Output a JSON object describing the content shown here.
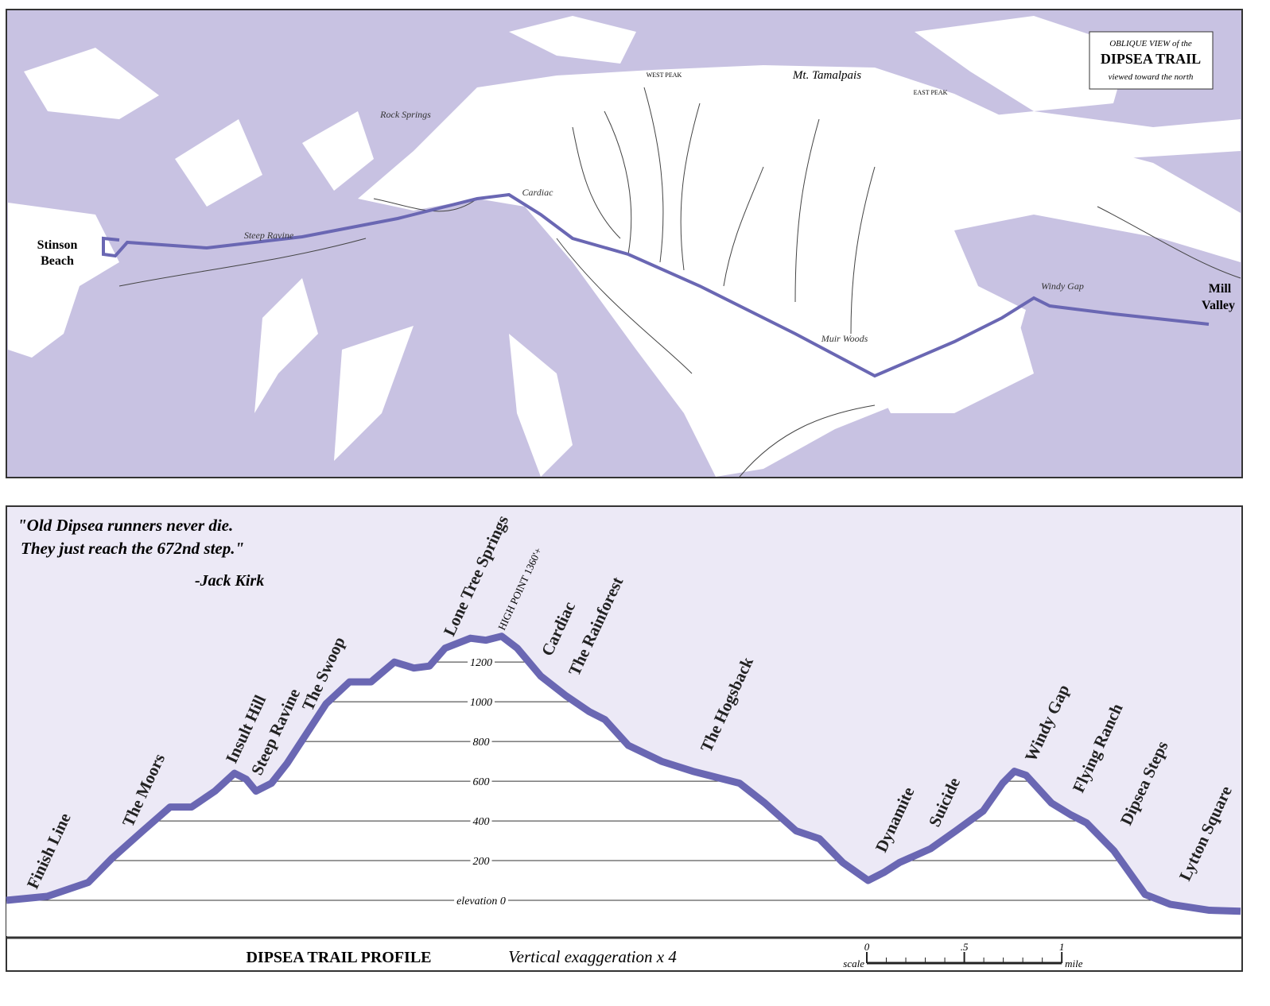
{
  "map": {
    "legend": {
      "line1": "OBLIQUE VIEW of the",
      "line2": "DIPSEA TRAIL",
      "line3": "viewed toward the north"
    },
    "labels": {
      "mountain": "Mt. Tamalpais",
      "west_peak": "WEST PEAK",
      "east_peak": "EAST PEAK",
      "rock_springs": "Rock Springs",
      "cardiac": "Cardiac",
      "steep_ravine": "Steep Ravine",
      "stinson_1": "Stinson",
      "stinson_2": "Beach",
      "mill_1": "Mill",
      "mill_2": "Valley",
      "windy_gap": "Windy Gap",
      "muir_woods": "Muir Woods"
    }
  },
  "chart_data": {
    "type": "line",
    "title": "DIPSEA TRAIL PROFILE",
    "subtitle": "Vertical exaggeration x 4",
    "quote": [
      "\"Old Dipsea runners never die.",
      "They just reach the 672nd step.\"",
      "-Jack Kirk"
    ],
    "annotations": [
      "Finish Line",
      "The Moors",
      "Insult Hill",
      "Steep Ravine",
      "The Swoop",
      "Lone Tree Springs",
      "HIGH POINT 1360'+",
      "Cardiac",
      "The Rainforest",
      "The Hogsback",
      "Dynamite",
      "Suicide",
      "Windy Gap",
      "Flying Ranch",
      "Dipsea Steps",
      "Lytton Square"
    ],
    "x": [
      0,
      0.21,
      0.42,
      0.54,
      0.7,
      0.84,
      0.95,
      1.07,
      1.17,
      1.23,
      1.28,
      1.36,
      1.44,
      1.52,
      1.64,
      1.76,
      1.87,
      1.99,
      2.09,
      2.17,
      2.25,
      2.38,
      2.46,
      2.54,
      2.62,
      2.74,
      2.87,
      2.99,
      3.07,
      3.19,
      3.36,
      3.52,
      3.68,
      3.76,
      3.89,
      4.05,
      4.17,
      4.29,
      4.42,
      4.5,
      4.58,
      4.74,
      4.87,
      5.01,
      5.11,
      5.17,
      5.23,
      5.36,
      5.46,
      5.54,
      5.68,
      5.84,
      5.97,
      6.17,
      6.33
    ],
    "series": [
      {
        "color": "#6a67b3",
        "values": [
          0,
          20,
          90,
          210,
          350,
          470,
          470,
          550,
          640,
          610,
          550,
          590,
          690,
          810,
          990,
          1100,
          1100,
          1200,
          1170,
          1180,
          1270,
          1320,
          1310,
          1330,
          1270,
          1130,
          1030,
          950,
          910,
          780,
          700,
          650,
          610,
          590,
          490,
          350,
          310,
          190,
          100,
          140,
          190,
          260,
          350,
          450,
          590,
          650,
          630,
          490,
          430,
          390,
          250,
          30,
          -20,
          -50,
          -55
        ]
      }
    ],
    "xlim": [
      0,
      6.33
    ],
    "ylim": [
      -180,
      1985
    ],
    "yticks": [
      {
        "value": 0,
        "label": "elevation 0"
      },
      200,
      400,
      600,
      800,
      1000,
      1200
    ],
    "grid": true,
    "scale_bar": {
      "label": "scale",
      "unit": "mile",
      "ticks": [
        0,
        {
          "value": 0.5,
          "label": ".5"
        },
        1
      ]
    }
  }
}
